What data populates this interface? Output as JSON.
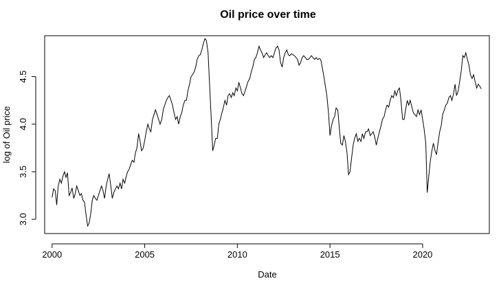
{
  "chart_data": {
    "type": "line",
    "title": "Oil price over time",
    "xlabel": "Date",
    "ylabel": "log of Oil price",
    "xlim": [
      1999.6,
      2023.6
    ],
    "ylim": [
      2.85,
      4.93
    ],
    "x_ticks": [
      2000,
      2005,
      2010,
      2015,
      2020
    ],
    "x_tick_labels": [
      "2000",
      "2005",
      "2010",
      "2015",
      "2020"
    ],
    "y_ticks": [
      3.0,
      3.5,
      4.0,
      4.5
    ],
    "y_tick_labels": [
      "3.0",
      "3.5",
      "4.0",
      "4.5"
    ],
    "grid": false,
    "series": [
      {
        "x": [
          2000.0,
          2000.08,
          2000.17,
          2000.25,
          2000.33,
          2000.42,
          2000.5,
          2000.58,
          2000.67,
          2000.75,
          2000.83,
          2000.92,
          2001.0,
          2001.08,
          2001.17,
          2001.25,
          2001.33,
          2001.42,
          2001.5,
          2001.58,
          2001.67,
          2001.75,
          2001.83,
          2001.92,
          2002.0,
          2002.08,
          2002.17,
          2002.25,
          2002.33,
          2002.42,
          2002.5,
          2002.58,
          2002.67,
          2002.75,
          2002.83,
          2002.92,
          2003.0,
          2003.08,
          2003.17,
          2003.25,
          2003.33,
          2003.42,
          2003.5,
          2003.58,
          2003.67,
          2003.75,
          2003.83,
          2003.92,
          2004.0,
          2004.08,
          2004.17,
          2004.25,
          2004.33,
          2004.42,
          2004.5,
          2004.58,
          2004.67,
          2004.75,
          2004.83,
          2004.92,
          2005.0,
          2005.08,
          2005.17,
          2005.25,
          2005.33,
          2005.42,
          2005.5,
          2005.58,
          2005.67,
          2005.75,
          2005.83,
          2005.92,
          2006.0,
          2006.08,
          2006.17,
          2006.25,
          2006.33,
          2006.42,
          2006.5,
          2006.58,
          2006.67,
          2006.75,
          2006.83,
          2006.92,
          2007.0,
          2007.08,
          2007.17,
          2007.25,
          2007.33,
          2007.42,
          2007.5,
          2007.58,
          2007.67,
          2007.75,
          2007.83,
          2007.92,
          2008.0,
          2008.08,
          2008.17,
          2008.25,
          2008.33,
          2008.42,
          2008.5,
          2008.58,
          2008.67,
          2008.75,
          2008.83,
          2008.92,
          2009.0,
          2009.08,
          2009.17,
          2009.25,
          2009.33,
          2009.42,
          2009.5,
          2009.58,
          2009.67,
          2009.75,
          2009.83,
          2009.92,
          2010.0,
          2010.08,
          2010.17,
          2010.25,
          2010.33,
          2010.42,
          2010.5,
          2010.58,
          2010.67,
          2010.75,
          2010.83,
          2010.92,
          2011.0,
          2011.08,
          2011.17,
          2011.25,
          2011.33,
          2011.42,
          2011.5,
          2011.58,
          2011.67,
          2011.75,
          2011.83,
          2011.92,
          2012.0,
          2012.08,
          2012.17,
          2012.25,
          2012.33,
          2012.42,
          2012.5,
          2012.58,
          2012.67,
          2012.75,
          2012.83,
          2012.92,
          2013.0,
          2013.08,
          2013.17,
          2013.25,
          2013.33,
          2013.42,
          2013.5,
          2013.58,
          2013.67,
          2013.75,
          2013.83,
          2013.92,
          2014.0,
          2014.08,
          2014.17,
          2014.25,
          2014.33,
          2014.42,
          2014.5,
          2014.58,
          2014.67,
          2014.75,
          2014.83,
          2014.92,
          2015.0,
          2015.08,
          2015.17,
          2015.25,
          2015.33,
          2015.42,
          2015.5,
          2015.58,
          2015.67,
          2015.75,
          2015.83,
          2015.92,
          2016.0,
          2016.08,
          2016.17,
          2016.25,
          2016.33,
          2016.42,
          2016.5,
          2016.58,
          2016.67,
          2016.75,
          2016.83,
          2016.92,
          2017.0,
          2017.08,
          2017.17,
          2017.25,
          2017.33,
          2017.42,
          2017.5,
          2017.58,
          2017.67,
          2017.75,
          2017.83,
          2017.92,
          2018.0,
          2018.08,
          2018.17,
          2018.25,
          2018.33,
          2018.42,
          2018.5,
          2018.58,
          2018.67,
          2018.75,
          2018.83,
          2018.92,
          2019.0,
          2019.08,
          2019.17,
          2019.25,
          2019.33,
          2019.42,
          2019.5,
          2019.58,
          2019.67,
          2019.75,
          2019.83,
          2019.92,
          2020.0,
          2020.08,
          2020.17,
          2020.25,
          2020.33,
          2020.42,
          2020.5,
          2020.58,
          2020.67,
          2020.75,
          2020.83,
          2020.92,
          2021.0,
          2021.08,
          2021.17,
          2021.25,
          2021.33,
          2021.42,
          2021.5,
          2021.58,
          2021.67,
          2021.75,
          2021.83,
          2021.92,
          2022.0,
          2022.08,
          2022.17,
          2022.25,
          2022.33,
          2022.42,
          2022.5,
          2022.58,
          2022.67,
          2022.75,
          2022.83,
          2022.92,
          2023.0,
          2023.08,
          2023.17
        ],
        "values": [
          3.23,
          3.32,
          3.3,
          3.15,
          3.35,
          3.42,
          3.38,
          3.45,
          3.5,
          3.44,
          3.49,
          3.25,
          3.28,
          3.33,
          3.22,
          3.27,
          3.35,
          3.3,
          3.25,
          3.27,
          3.2,
          3.18,
          3.05,
          2.93,
          2.96,
          3.05,
          3.2,
          3.25,
          3.22,
          3.2,
          3.25,
          3.3,
          3.35,
          3.3,
          3.22,
          3.35,
          3.42,
          3.48,
          3.35,
          3.22,
          3.28,
          3.32,
          3.35,
          3.32,
          3.38,
          3.32,
          3.42,
          3.38,
          3.45,
          3.5,
          3.53,
          3.58,
          3.62,
          3.6,
          3.7,
          3.75,
          3.9,
          3.82,
          3.72,
          3.75,
          3.83,
          3.92,
          4.0,
          3.95,
          3.92,
          4.05,
          4.1,
          4.15,
          4.1,
          4.05,
          4.0,
          4.05,
          4.15,
          4.2,
          4.25,
          4.28,
          4.3,
          4.25,
          4.2,
          4.12,
          4.05,
          4.08,
          4.0,
          4.08,
          4.12,
          4.2,
          4.25,
          4.25,
          4.35,
          4.42,
          4.5,
          4.52,
          4.55,
          4.6,
          4.68,
          4.72,
          4.73,
          4.78,
          4.85,
          4.9,
          4.88,
          4.75,
          4.42,
          4.1,
          3.72,
          3.78,
          3.85,
          3.85,
          4.0,
          4.05,
          4.12,
          4.18,
          4.25,
          4.2,
          4.3,
          4.32,
          4.28,
          4.33,
          4.3,
          4.38,
          4.35,
          4.44,
          4.38,
          4.32,
          4.3,
          4.35,
          4.4,
          4.45,
          4.48,
          4.55,
          4.6,
          4.68,
          4.7,
          4.75,
          4.82,
          4.78,
          4.75,
          4.7,
          4.73,
          4.75,
          4.72,
          4.7,
          4.72,
          4.7,
          4.75,
          4.8,
          4.82,
          4.78,
          4.65,
          4.6,
          4.7,
          4.75,
          4.78,
          4.73,
          4.72,
          4.74,
          4.73,
          4.72,
          4.7,
          4.68,
          4.62,
          4.65,
          4.7,
          4.72,
          4.7,
          4.68,
          4.68,
          4.7,
          4.72,
          4.7,
          4.68,
          4.7,
          4.68,
          4.69,
          4.68,
          4.6,
          4.5,
          4.4,
          4.3,
          4.12,
          3.88,
          3.98,
          4.05,
          4.08,
          4.17,
          4.15,
          3.97,
          3.8,
          3.78,
          3.88,
          3.82,
          3.7,
          3.47,
          3.5,
          3.65,
          3.78,
          3.85,
          3.9,
          3.82,
          3.85,
          3.82,
          3.9,
          3.85,
          3.92,
          3.92,
          3.95,
          3.88,
          3.9,
          3.92,
          3.86,
          3.78,
          3.85,
          3.92,
          3.98,
          4.05,
          4.08,
          4.15,
          4.2,
          4.18,
          4.25,
          4.3,
          4.28,
          4.35,
          4.3,
          4.36,
          4.38,
          4.25,
          4.05,
          4.05,
          4.15,
          4.25,
          4.2,
          4.25,
          4.18,
          4.12,
          4.1,
          4.08,
          4.15,
          4.1,
          4.15,
          4.05,
          3.95,
          3.8,
          3.28,
          3.45,
          3.62,
          3.72,
          3.8,
          3.72,
          3.68,
          3.8,
          3.92,
          3.98,
          4.1,
          4.15,
          4.2,
          4.22,
          4.28,
          4.3,
          4.25,
          4.32,
          4.42,
          4.3,
          4.35,
          4.45,
          4.55,
          4.72,
          4.7,
          4.75,
          4.68,
          4.62,
          4.52,
          4.48,
          4.52,
          4.45,
          4.38,
          4.42,
          4.4,
          4.37
        ]
      }
    ]
  }
}
